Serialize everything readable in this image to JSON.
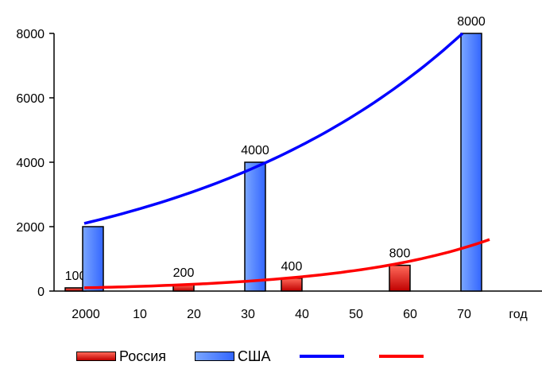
{
  "chart_data": {
    "type": "bar",
    "categories": [
      "2000",
      "10",
      "20",
      "30",
      "40",
      "50",
      "60",
      "70",
      "год"
    ],
    "ylim": [
      0,
      8000
    ],
    "y_ticks": [
      "0",
      "2000",
      "4000",
      "6000",
      "8000"
    ],
    "series": [
      {
        "name": "Россия",
        "color": "#cc0000",
        "points": [
          {
            "category": "2000",
            "value": 100,
            "label": "100"
          },
          {
            "category": "20",
            "value": 200,
            "label": "200"
          },
          {
            "category": "40",
            "value": 400,
            "label": "400"
          },
          {
            "category": "60",
            "value": 800,
            "label": "800"
          }
        ]
      },
      {
        "name": "США",
        "color": "#3366ff",
        "points": [
          {
            "category": "2000",
            "value": 2000,
            "label": ""
          },
          {
            "category": "30",
            "value": 4000,
            "label": "4000"
          },
          {
            "category": "70",
            "value": 8000,
            "label": "8000"
          }
        ]
      }
    ],
    "trendlines": [
      {
        "series": "США",
        "type": "exponential",
        "color": "#0000ff",
        "values": [
          {
            "x": 0,
            "y": 2100
          },
          {
            "x": 7,
            "y": 8000
          }
        ]
      },
      {
        "series": "Россия",
        "type": "exponential",
        "color": "#ff0000",
        "values": [
          {
            "x": 0,
            "y": 100
          },
          {
            "x": 7.5,
            "y": 1600
          }
        ]
      }
    ],
    "legend_position": "bottom"
  },
  "legend": {
    "items": [
      {
        "label": "Россия"
      },
      {
        "label": "США"
      },
      {
        "label": "",
        "color": "#0000ff"
      },
      {
        "label": "",
        "color": "#ff0000"
      }
    ]
  }
}
